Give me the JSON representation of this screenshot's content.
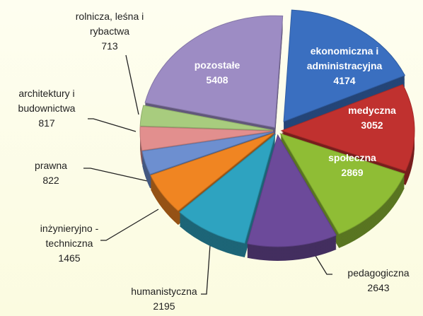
{
  "chart_data": {
    "type": "pie",
    "categories": [
      "ekonomiczna i administracyjna",
      "medyczna",
      "społeczna",
      "pedagogiczna",
      "humanistyczna",
      "inżynieryjno - techniczna",
      "prawna",
      "architektury i budownictwa",
      "rolnicza, leśna i rybactwa",
      "pozostałe"
    ],
    "values": [
      4174,
      3052,
      2869,
      2643,
      2195,
      1465,
      822,
      817,
      713,
      5408
    ],
    "colors": [
      "#3a6fc0",
      "#c0312f",
      "#8fbd35",
      "#6c4a9a",
      "#2ea3c0",
      "#f08522",
      "#6d8fd0",
      "#e28f8e",
      "#a8cc7e",
      "#9d8cc4"
    ]
  }
}
